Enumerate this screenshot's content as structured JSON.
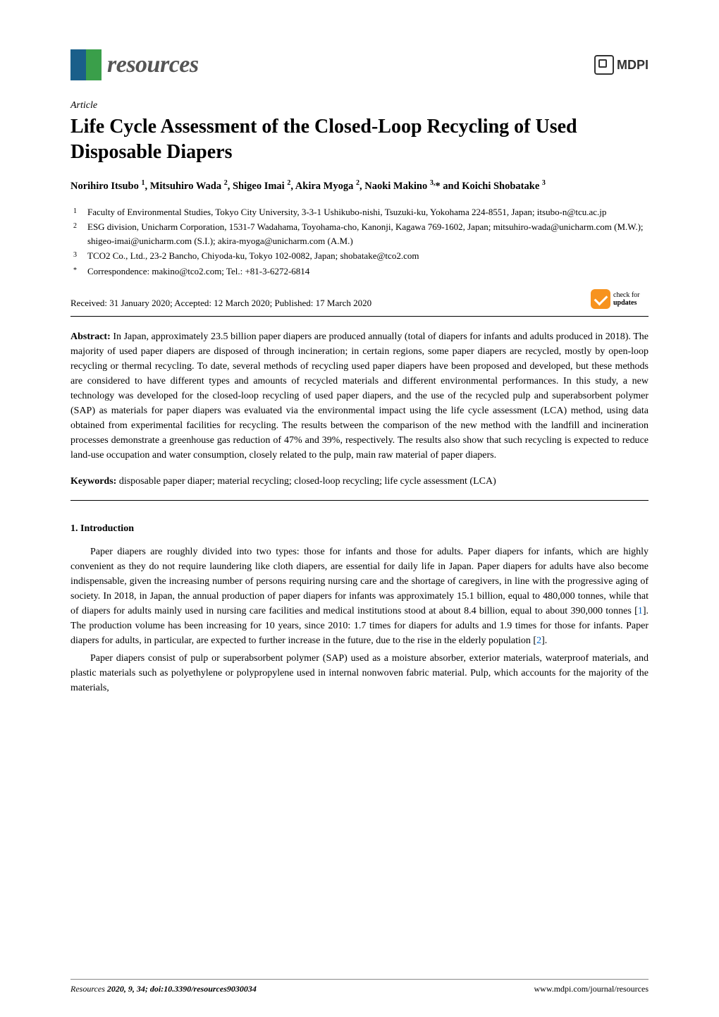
{
  "journal": {
    "name": "resources",
    "logo_colors": {
      "left": "#1a5f8a",
      "right": "#3a9f4a"
    }
  },
  "publisher": {
    "name": "MDPI"
  },
  "article_type": "Article",
  "title": "Life Cycle Assessment of the Closed-Loop Recycling of Used Disposable Diapers",
  "authors_html": "Norihiro Itsubo ¹, Mitsuhiro Wada ², Shigeo Imai ², Akira Myoga ², Naoki Makino ³,* and Koichi Shobatake ³",
  "affiliations": [
    {
      "num": "1",
      "text": "Faculty of Environmental Studies, Tokyo City University, 3-3-1 Ushikubo-nishi, Tsuzuki-ku, Yokohama 224-8551, Japan; itsubo-n@tcu.ac.jp"
    },
    {
      "num": "2",
      "text": "ESG division, Unicharm Corporation, 1531-7 Wadahama, Toyohama-cho, Kanonji, Kagawa 769-1602, Japan; mitsuhiro-wada@unicharm.com (M.W.); shigeo-imai@unicharm.com (S.I.); akira-myoga@unicharm.com (A.M.)"
    },
    {
      "num": "3",
      "text": "TCO2 Co., Ltd., 23-2 Bancho, Chiyoda-ku, Tokyo 102-0082, Japan; shobatake@tco2.com"
    },
    {
      "num": "*",
      "text": "Correspondence: makino@tco2.com; Tel.: +81-3-6272-6814"
    }
  ],
  "dates": "Received: 31 January 2020; Accepted: 12 March 2020; Published: 17 March 2020",
  "check_updates": {
    "line1": "check for",
    "line2": "updates"
  },
  "abstract_label": "Abstract:",
  "abstract_text": " In Japan, approximately 23.5 billion paper diapers are produced annually (total of diapers for infants and adults produced in 2018). The majority of used paper diapers are disposed of through incineration; in certain regions, some paper diapers are recycled, mostly by open-loop recycling or thermal recycling. To date, several methods of recycling used paper diapers have been proposed and developed, but these methods are considered to have different types and amounts of recycled materials and different environmental performances. In this study, a new technology was developed for the closed-loop recycling of used paper diapers, and the use of the recycled pulp and superabsorbent polymer (SAP) as materials for paper diapers was evaluated via the environmental impact using the life cycle assessment (LCA) method, using data obtained from experimental facilities for recycling. The results between the comparison of the new method with the landfill and incineration processes demonstrate a greenhouse gas reduction of 47% and 39%, respectively. The results also show that such recycling is expected to reduce land-use occupation and water consumption, closely related to the pulp, main raw material of paper diapers.",
  "keywords_label": "Keywords:",
  "keywords_text": " disposable paper diaper; material recycling; closed-loop recycling; life cycle assessment (LCA)",
  "section1": {
    "heading": "1. Introduction",
    "para1_a": "Paper diapers are roughly divided into two types: those for infants and those for adults. Paper diapers for infants, which are highly convenient as they do not require laundering like cloth diapers, are essential for daily life in Japan. Paper diapers for adults have also become indispensable, given the increasing number of persons requiring nursing care and the shortage of caregivers, in line with the progressive aging of society. In 2018, in Japan, the annual production of paper diapers for infants was approximately 15.1 billion, equal to 480,000 tonnes, while that of diapers for adults mainly used in nursing care facilities and medical institutions stood at about 8.4 billion, equal to about 390,000 tonnes [",
    "ref1": "1",
    "para1_b": "]. The production volume has been increasing for 10 years, since 2010: 1.7 times for diapers for adults and 1.9 times for those for infants. Paper diapers for adults, in particular, are expected to further increase in the future, due to the rise in the elderly population [",
    "ref2": "2",
    "para1_c": "].",
    "para2": "Paper diapers consist of pulp or superabsorbent polymer (SAP) used as a moisture absorber, exterior materials, waterproof materials, and plastic materials such as polyethylene or polypropylene used in internal nonwoven fabric material. Pulp, which accounts for the majority of the materials,"
  },
  "footer": {
    "journal_ref": "Resources ",
    "citation": "2020, 9, 34; doi:10.3390/resources9030034",
    "url": "www.mdpi.com/journal/resources"
  }
}
